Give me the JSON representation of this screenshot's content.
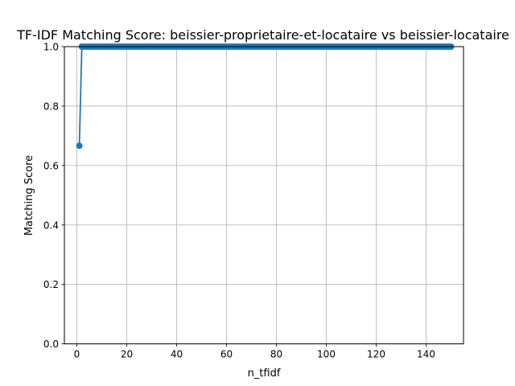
{
  "chart_data": {
    "type": "line",
    "title": "TF-IDF Matching Score: beissier-proprietaire-et-locataire vs beissier-locataire",
    "xlabel": "n_tfidf",
    "ylabel": "Matching Score",
    "xlim": [
      -5,
      155
    ],
    "ylim": [
      0,
      1
    ],
    "x_ticks": [
      0,
      20,
      40,
      60,
      80,
      100,
      120,
      140
    ],
    "y_ticks": [
      0.0,
      0.2,
      0.4,
      0.6,
      0.8,
      1.0
    ],
    "x_tick_labels": [
      "0",
      "20",
      "40",
      "60",
      "80",
      "100",
      "120",
      "140"
    ],
    "y_tick_labels": [
      "0.0",
      "0.2",
      "0.4",
      "0.6",
      "0.8",
      "1.0"
    ],
    "grid": true,
    "marker": "circle",
    "series": [
      {
        "color": "#1f77b4",
        "first_point": {
          "x": 1,
          "y": 0.6667
        },
        "rest": {
          "x_from": 2,
          "x_to": 150,
          "y": 1.0
        }
      }
    ]
  }
}
